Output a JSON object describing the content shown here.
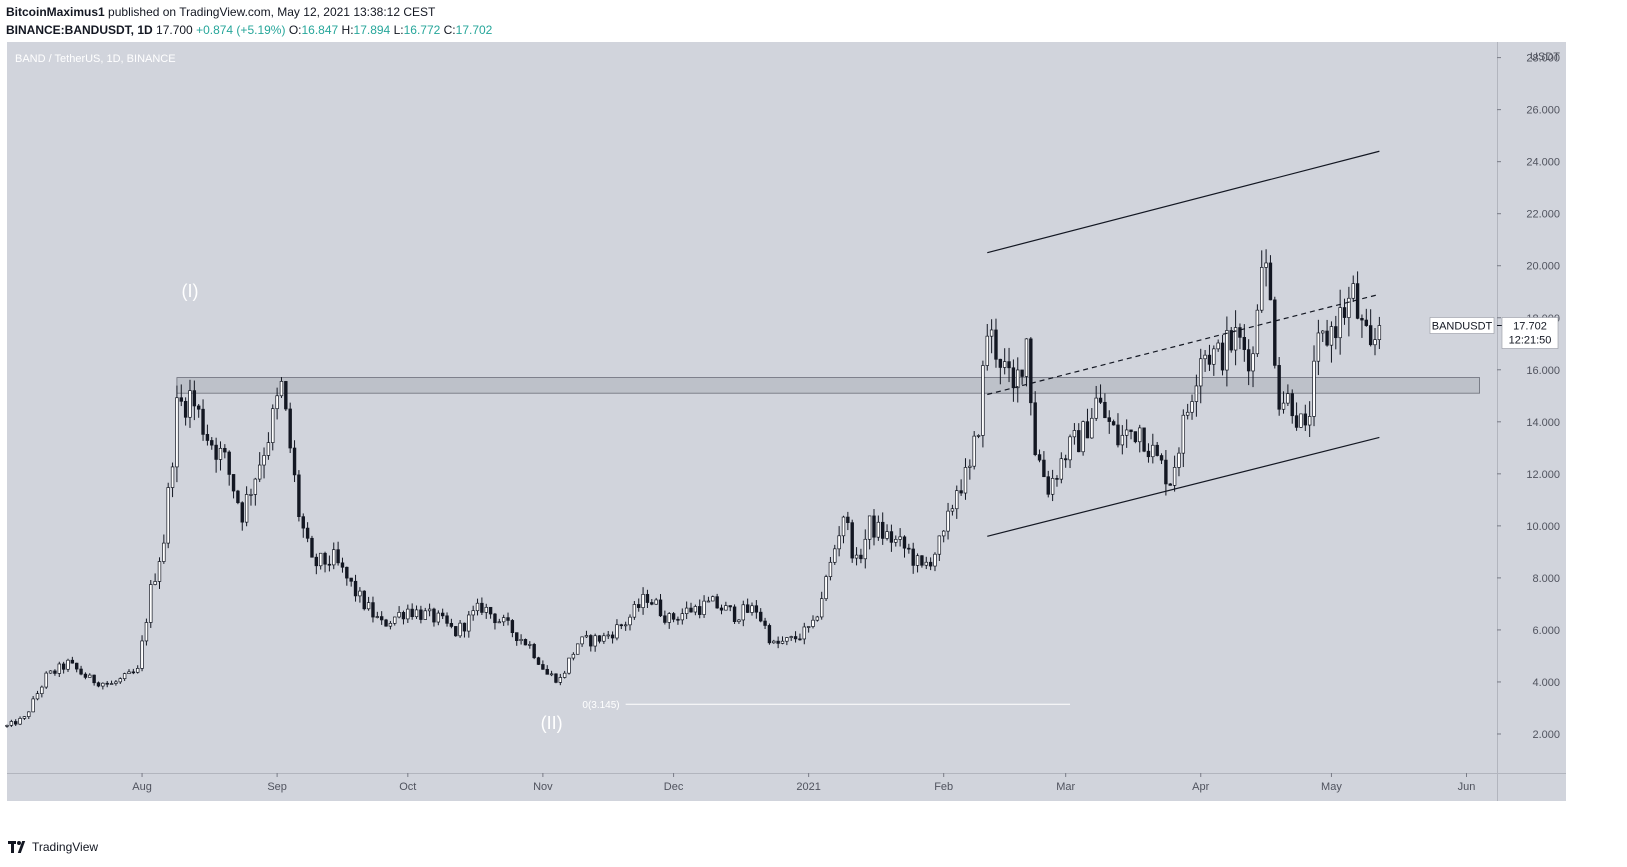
{
  "header": {
    "author": "BitcoinMaximus1",
    "published": "published on TradingView.com, May 12, 2021 13:38:12 CEST",
    "symbol": "BINANCE:BANDUSDT, 1D",
    "last": "17.700",
    "change": "+0.874 (+5.19%)",
    "o_label": "O:",
    "o": "16.847",
    "h_label": "H:",
    "h": "17.894",
    "l_label": "L:",
    "l": "16.772",
    "c_label": "C:",
    "c": "17.702"
  },
  "chart_data": {
    "type": "candlestick",
    "title": "BAND / TetherUS, 1D, BINANCE",
    "currency": "USDT",
    "ylim": [
      0.5,
      28.6
    ],
    "y_ticks": [
      "2.000",
      "4.000",
      "6.000",
      "8.000",
      "10.000",
      "12.000",
      "14.000",
      "16.000",
      "18.000",
      "20.000",
      "22.000",
      "24.000",
      "26.000",
      "28.000"
    ],
    "x_range": [
      "2020-07-01",
      "2021-06-08"
    ],
    "x_ticks": [
      {
        "date": "2020-08-01",
        "label": "Aug"
      },
      {
        "date": "2020-09-01",
        "label": "Sep"
      },
      {
        "date": "2020-10-01",
        "label": "Oct"
      },
      {
        "date": "2020-11-01",
        "label": "Nov"
      },
      {
        "date": "2020-12-01",
        "label": "Dec"
      },
      {
        "date": "2021-01-01",
        "label": "2021"
      },
      {
        "date": "2021-02-01",
        "label": "Feb"
      },
      {
        "date": "2021-03-01",
        "label": "Mar"
      },
      {
        "date": "2021-04-01",
        "label": "Apr"
      },
      {
        "date": "2021-05-01",
        "label": "May"
      },
      {
        "date": "2021-06-01",
        "label": "Jun"
      }
    ],
    "price_path": [
      [
        "2020-07-01",
        2.3
      ],
      [
        "2020-07-05",
        2.6
      ],
      [
        "2020-07-10",
        4.2
      ],
      [
        "2020-07-15",
        4.7
      ],
      [
        "2020-07-20",
        4.1
      ],
      [
        "2020-07-25",
        3.9
      ],
      [
        "2020-07-31",
        4.4
      ],
      [
        "2020-08-03",
        7.5
      ],
      [
        "2020-08-06",
        9.5
      ],
      [
        "2020-08-09",
        14.5
      ],
      [
        "2020-08-12",
        15.0
      ],
      [
        "2020-08-16",
        13.5
      ],
      [
        "2020-08-20",
        12.5
      ],
      [
        "2020-08-24",
        10.5
      ],
      [
        "2020-08-27",
        12.0
      ],
      [
        "2020-08-30",
        13.5
      ],
      [
        "2020-09-02",
        15.3
      ],
      [
        "2020-09-04",
        13.0
      ],
      [
        "2020-09-06",
        10.5
      ],
      [
        "2020-09-09",
        8.5
      ],
      [
        "2020-09-14",
        8.7
      ],
      [
        "2020-09-20",
        7.2
      ],
      [
        "2020-09-25",
        6.2
      ],
      [
        "2020-10-01",
        6.8
      ],
      [
        "2020-10-08",
        6.4
      ],
      [
        "2020-10-12",
        5.9
      ],
      [
        "2020-10-18",
        6.9
      ],
      [
        "2020-10-24",
        6.1
      ],
      [
        "2020-10-29",
        5.4
      ],
      [
        "2020-11-02",
        4.3
      ],
      [
        "2020-11-05",
        4.1
      ],
      [
        "2020-11-09",
        5.5
      ],
      [
        "2020-11-15",
        5.7
      ],
      [
        "2020-11-20",
        6.3
      ],
      [
        "2020-11-25",
        7.3
      ],
      [
        "2020-11-30",
        6.4
      ],
      [
        "2020-12-05",
        6.8
      ],
      [
        "2020-12-10",
        7.0
      ],
      [
        "2020-12-15",
        6.6
      ],
      [
        "2020-12-20",
        6.8
      ],
      [
        "2020-12-24",
        5.4
      ],
      [
        "2020-12-28",
        5.6
      ],
      [
        "2021-01-02",
        6.1
      ],
      [
        "2021-01-06",
        8.5
      ],
      [
        "2021-01-09",
        10.5
      ],
      [
        "2021-01-12",
        8.5
      ],
      [
        "2021-01-15",
        10.0
      ],
      [
        "2021-01-20",
        9.5
      ],
      [
        "2021-01-24",
        9.0
      ],
      [
        "2021-01-27",
        8.3
      ],
      [
        "2021-02-01",
        9.5
      ],
      [
        "2021-02-04",
        11.5
      ],
      [
        "2021-02-07",
        12.0
      ],
      [
        "2021-02-09",
        14.0
      ],
      [
        "2021-02-11",
        17.5
      ],
      [
        "2021-02-14",
        16.5
      ],
      [
        "2021-02-17",
        15.0
      ],
      [
        "2021-02-20",
        17.2
      ],
      [
        "2021-02-22",
        13.0
      ],
      [
        "2021-02-25",
        11.5
      ],
      [
        "2021-03-01",
        12.8
      ],
      [
        "2021-03-05",
        13.5
      ],
      [
        "2021-03-08",
        14.8
      ],
      [
        "2021-03-13",
        13.3
      ],
      [
        "2021-03-18",
        13.8
      ],
      [
        "2021-03-22",
        12.5
      ],
      [
        "2021-03-25",
        11.8
      ],
      [
        "2021-03-29",
        14.5
      ],
      [
        "2021-04-01",
        16.8
      ],
      [
        "2021-04-05",
        16.5
      ],
      [
        "2021-04-09",
        17.2
      ],
      [
        "2021-04-13",
        16.5
      ],
      [
        "2021-04-15",
        20.8
      ],
      [
        "2021-04-17",
        18.5
      ],
      [
        "2021-04-19",
        15.0
      ],
      [
        "2021-04-22",
        14.8
      ],
      [
        "2021-04-25",
        13.4
      ],
      [
        "2021-04-28",
        16.8
      ],
      [
        "2021-05-02",
        17.8
      ],
      [
        "2021-05-06",
        18.8
      ],
      [
        "2021-05-08",
        17.5
      ],
      [
        "2021-05-10",
        16.5
      ],
      [
        "2021-05-12",
        17.7
      ]
    ],
    "support_zone": {
      "from": "2020-08-09",
      "to": "2021-06-04",
      "low": 15.1,
      "high": 15.7
    },
    "channel_upper": [
      [
        "2021-02-11",
        20.5
      ],
      [
        "2021-05-12",
        24.4
      ]
    ],
    "channel_lower": [
      [
        "2021-02-11",
        9.6
      ],
      [
        "2021-05-12",
        13.4
      ]
    ],
    "channel_mid": [
      [
        "2021-02-11",
        15.05
      ],
      [
        "2021-05-12",
        18.9
      ]
    ],
    "fib_line": {
      "from": "2020-11-20",
      "to": "2021-03-02",
      "y": 3.145,
      "label": "0(3.145)"
    },
    "wave_labels": [
      {
        "date": "2020-08-12",
        "y": 18.8,
        "text": "(I)"
      },
      {
        "date": "2020-11-03",
        "y": 2.2,
        "text": "(II)"
      }
    ],
    "price_label": {
      "symbol": "BANDUSDT",
      "price": "17.702",
      "countdown": "12:21:50",
      "y": 17.702
    }
  },
  "footer": {
    "brand": "TradingView"
  },
  "colors": {
    "plot_bg": "#d1d4dc",
    "candle": "#131722",
    "zone": "#b8bbc4"
  }
}
